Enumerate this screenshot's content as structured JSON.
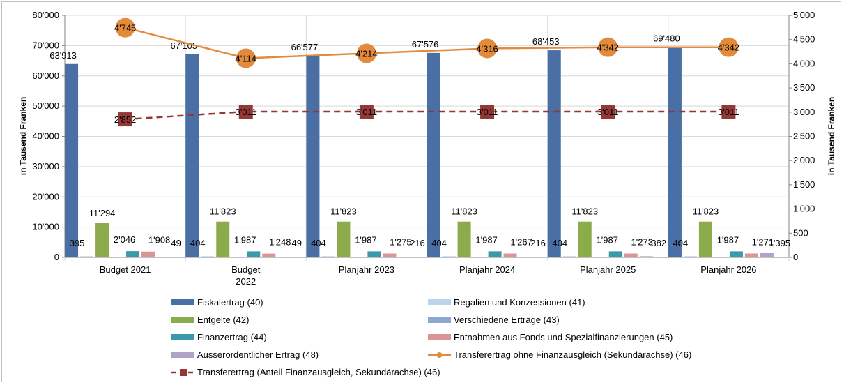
{
  "chart_data": {
    "type": "bar",
    "categories": [
      [
        "Budget 2021"
      ],
      [
        "Budget",
        "2022"
      ],
      [
        "Planjahr 2023"
      ],
      [
        "Planjahr 2024"
      ],
      [
        "Planjahr 2025"
      ],
      [
        "Planjahr 2026"
      ]
    ],
    "y_left_label": "in Tausend Franken",
    "y_right_label": "in Tausend Franken",
    "y_left_ticks": [
      "0",
      "10'000",
      "20'000",
      "30'000",
      "40'000",
      "50'000",
      "60'000",
      "70'000",
      "80'000"
    ],
    "y_left_range": [
      0,
      80000
    ],
    "y_right_ticks": [
      "0",
      "500",
      "1'000",
      "1'500",
      "2'000",
      "2'500",
      "3'000",
      "3'500",
      "4'000",
      "4'500",
      "5'000"
    ],
    "y_right_range": [
      0,
      5000
    ],
    "grid": "vertical category dividers and horizontal gridlines",
    "legend_position": "bottom",
    "bar_series": [
      {
        "name": "Fiskalertrag (40)",
        "color": "#4a6fa5",
        "values": [
          63913,
          67105,
          66577,
          67576,
          68453,
          69480
        ],
        "labels": [
          "63'913",
          "67'105",
          "66'577",
          "67'576",
          "68'453",
          "69'480"
        ]
      },
      {
        "name": "Regalien und Konzessionen (41)",
        "color": "#bcd3ec",
        "values": [
          395,
          404,
          404,
          404,
          404,
          404
        ],
        "labels": [
          "395",
          "404",
          "404",
          "404",
          "404",
          "404"
        ]
      },
      {
        "name": "Entgelte (42)",
        "color": "#8cab4b",
        "values": [
          11294,
          11823,
          11823,
          11823,
          11823,
          11823
        ],
        "labels": [
          "11'294",
          "11'823",
          "11'823",
          "11'823",
          "11'823",
          "11'823"
        ]
      },
      {
        "name": "Verschiedene Erträge (43)",
        "color": "#8ea6d2",
        "values": [
          0,
          0,
          0,
          0,
          0,
          0
        ],
        "labels": [
          "",
          "",
          "",
          "",
          "",
          ""
        ]
      },
      {
        "name": "Finanzertrag (44)",
        "color": "#3a9aaa",
        "values": [
          2046,
          1987,
          1987,
          1987,
          1987,
          1987
        ],
        "labels": [
          "2'046",
          "1'987",
          "1'987",
          "1'987",
          "1'987",
          "1'987"
        ]
      },
      {
        "name": "Entnahmen aus Fonds und Spezialfinanzierungen (45)",
        "color": "#d99694",
        "values": [
          1908,
          1248,
          1275,
          1267,
          1273,
          1271
        ],
        "labels": [
          "1'908",
          "1'248",
          "1'275",
          "1'267",
          "1'273",
          "1'271"
        ]
      },
      {
        "name": "Ausserordentlicher Ertrag (48)",
        "color": "#b3a2c7",
        "values": [
          49,
          49,
          216,
          216,
          382,
          1395
        ],
        "labels": [
          "49",
          "49",
          "216",
          "216",
          "382",
          "1'395"
        ]
      }
    ],
    "line_series": [
      {
        "name": "Transferertrag ohne Finanzausgleich (Sekundärachse) (46)",
        "color": "#e38b3c",
        "style": "solid-circle",
        "axis": "secondary",
        "values": [
          4745,
          4114,
          4214,
          4316,
          4342,
          4342
        ],
        "labels": [
          "4'745",
          "4'114",
          "4'214",
          "4'316",
          "4'342",
          "4'342"
        ]
      },
      {
        "name": "Transferertrag (Anteil Finanzausgleich, Sekundärachse) (46)",
        "color": "#953735",
        "style": "dashed-square",
        "axis": "secondary",
        "values": [
          2852,
          3011,
          3011,
          3011,
          3011,
          3011
        ],
        "labels": [
          "2'852",
          "3'011",
          "3'011",
          "3'011",
          "3'011",
          "3'011"
        ]
      }
    ]
  }
}
